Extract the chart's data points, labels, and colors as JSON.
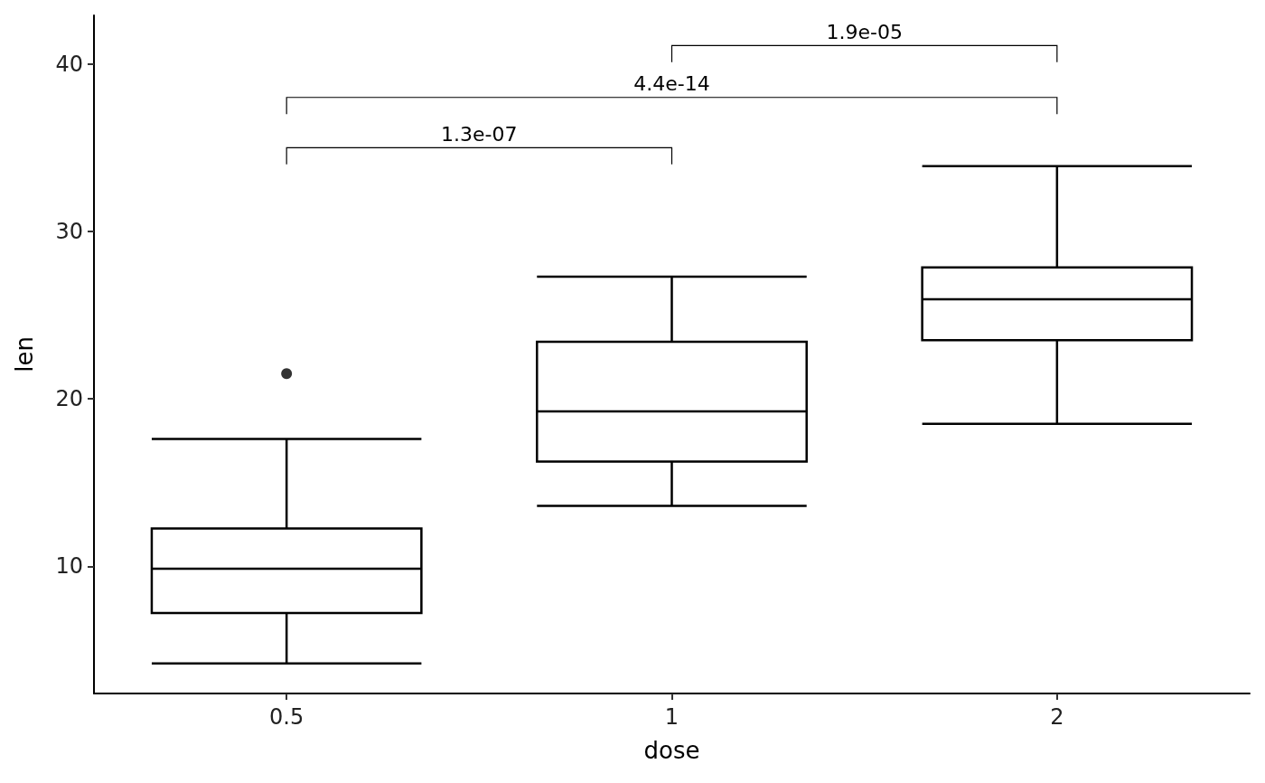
{
  "chart_data": {
    "type": "box",
    "categories": [
      "0.5",
      "1",
      "2"
    ],
    "xlabel": "dose",
    "ylabel": "len",
    "color": "#000000",
    "boxes": [
      {
        "low": 4.2,
        "q1": 7.2,
        "median": 9.85,
        "q3": 12.25,
        "high": 17.6,
        "outliers": [
          21.5
        ]
      },
      {
        "low": 13.6,
        "q1": 16.25,
        "median": 19.25,
        "q3": 23.4,
        "high": 27.3
      },
      {
        "low": 18.5,
        "q1": 23.5,
        "median": 25.95,
        "q3": 27.85,
        "high": 33.9
      }
    ],
    "ylim": [
      2.4,
      42.9
    ],
    "yticks": [
      10,
      20,
      30,
      40
    ],
    "grid": false,
    "annotations": [
      "1.3e-07",
      "4.4e-14",
      "1.9e-05"
    ]
  }
}
